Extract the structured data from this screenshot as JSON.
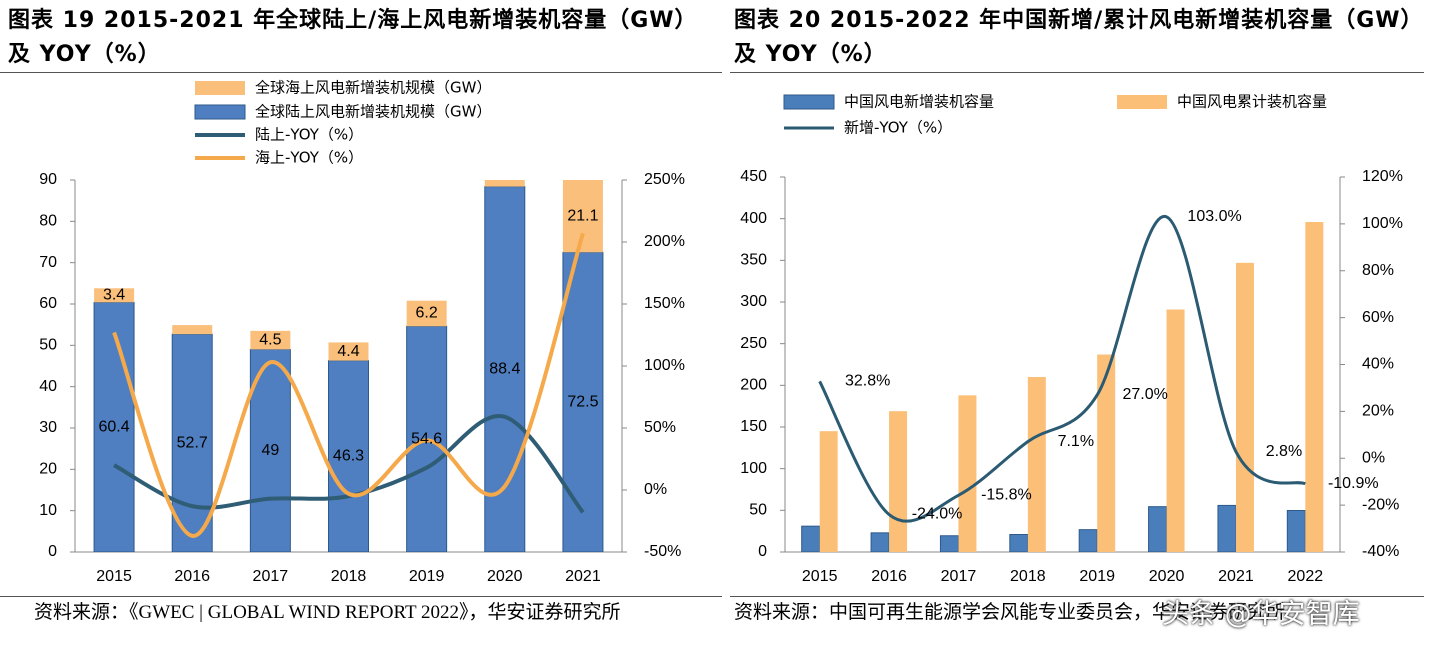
{
  "chart_data": [
    {
      "type": "bar-line",
      "title": "图表 19 2015-2021 年全球陆上/海上风电新增装机容量（GW）及 YOY（%）",
      "source": "资料来源：《GWEC | GLOBAL WIND REPORT 2022》，华安证券研究所",
      "categories": [
        "2015",
        "2016",
        "2017",
        "2018",
        "2019",
        "2020",
        "2021"
      ],
      "stacked": true,
      "grid": false,
      "legend": "top-left",
      "series": [
        {
          "name": "全球海上风电新增装机规模（GW）",
          "type": "bar",
          "color": "#fbbf7c",
          "data_labels": true,
          "values": [
            3.4,
            2.2,
            4.5,
            4.4,
            6.2,
            6.1,
            21.1
          ]
        },
        {
          "name": "全球陆上风电新增装机规模（GW）",
          "type": "bar",
          "color": "#4f7fc0",
          "data_labels": true,
          "values": [
            60.4,
            52.7,
            49,
            46.3,
            54.6,
            88.4,
            72.5
          ]
        },
        {
          "name": "陆上-YOY（%）",
          "type": "line",
          "axis": "y2",
          "color": "#2f5d75",
          "values": [
            20,
            -13,
            -7,
            -5,
            18,
            59,
            -18
          ]
        },
        {
          "name": "海上-YOY（%）",
          "type": "line",
          "axis": "y2",
          "color": "#f5a94a",
          "values": [
            127,
            -37,
            103,
            -3,
            40,
            3,
            207
          ]
        }
      ],
      "ylim": [
        0,
        90
      ],
      "yticks": [
        0,
        10,
        20,
        30,
        40,
        50,
        60,
        70,
        80,
        90
      ],
      "y2lim": [
        -50,
        250
      ],
      "y2ticks": [
        {
          "value": -50,
          "label": "-50%"
        },
        {
          "value": 0,
          "label": "0%"
        },
        {
          "value": 50,
          "label": "50%"
        },
        {
          "value": 100,
          "label": "100%"
        },
        {
          "value": 150,
          "label": "150%"
        },
        {
          "value": 200,
          "label": "200%"
        },
        {
          "value": 250,
          "label": "250%"
        }
      ]
    },
    {
      "type": "bar-line",
      "title": "图表 20 2015-2022 年中国新增/累计风电新增装机容量（GW）及 YOY（%）",
      "source": "资料来源：中国可再生能源学会风能专业委员会，华安证券研究所",
      "categories": [
        "2015",
        "2016",
        "2017",
        "2018",
        "2019",
        "2020",
        "2021",
        "2022"
      ],
      "stacked": false,
      "grid": false,
      "legend": "top-left",
      "series": [
        {
          "name": "中国风电新增装机容量",
          "type": "bar",
          "color": "#4a7ebb",
          "values": [
            31,
            23,
            19.5,
            21,
            26.8,
            54.4,
            55.9,
            49.8
          ]
        },
        {
          "name": "中国风电累计装机容量",
          "type": "bar",
          "color": "#fbbf78",
          "values": [
            145,
            169,
            188,
            210,
            237,
            291,
            347,
            396
          ]
        },
        {
          "name": "新增-YOY（%）",
          "type": "line",
          "axis": "y2",
          "color": "#2b5a73",
          "data_labels": true,
          "values": [
            32.8,
            -24.0,
            -15.8,
            7.1,
            27.0,
            103.0,
            2.8,
            -10.9
          ],
          "value_labels": [
            "32.8%",
            "-24.0%",
            "-15.8%",
            "7.1%",
            "27.0%",
            "103.0%",
            "2.8%",
            "-10.9%"
          ]
        }
      ],
      "ylim": [
        0,
        450
      ],
      "yticks": [
        0,
        50,
        100,
        150,
        200,
        250,
        300,
        350,
        400,
        450
      ],
      "y2lim": [
        -40,
        120
      ],
      "y2ticks": [
        {
          "value": -40,
          "label": "-40%"
        },
        {
          "value": -20,
          "label": "-20%"
        },
        {
          "value": 0,
          "label": "0%"
        },
        {
          "value": 20,
          "label": "20%"
        },
        {
          "value": 40,
          "label": "40%"
        },
        {
          "value": 60,
          "label": "60%"
        },
        {
          "value": 80,
          "label": "80%"
        },
        {
          "value": 100,
          "label": "100%"
        },
        {
          "value": 120,
          "label": "120%"
        }
      ]
    }
  ],
  "watermark": "头条 @华安智库"
}
